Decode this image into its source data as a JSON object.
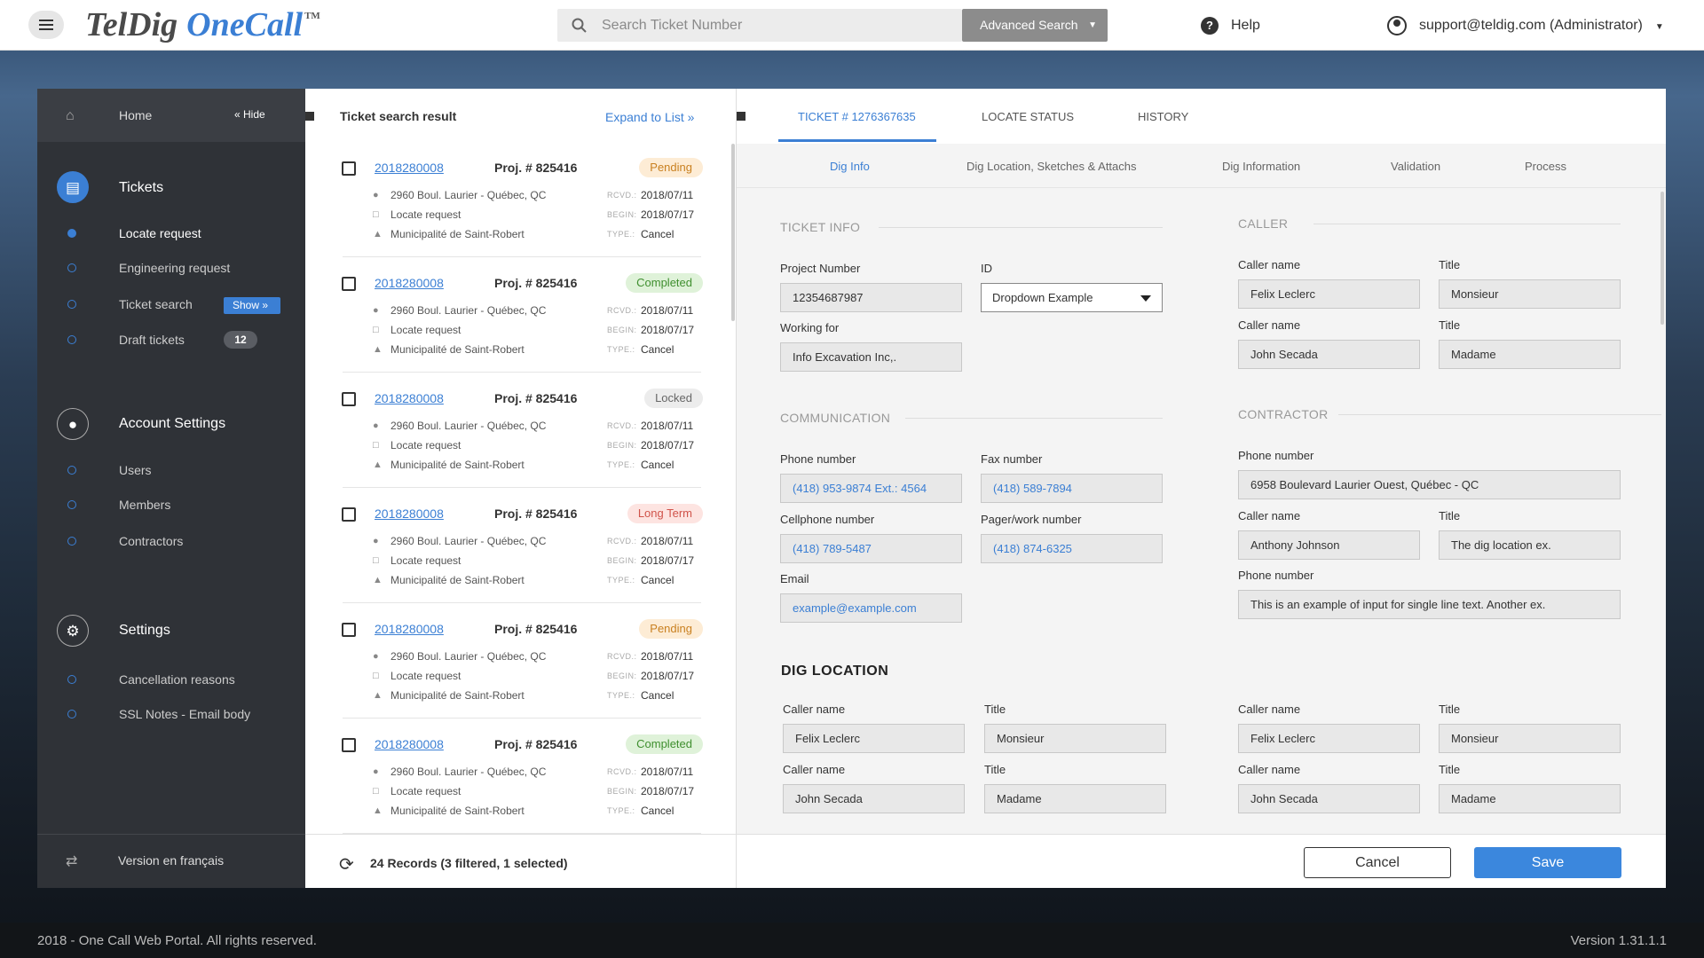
{
  "app": {
    "logo_part1": "TelDig",
    "logo_part2": "OneCall",
    "tm": "TM"
  },
  "search": {
    "placeholder": "Search Ticket Number",
    "advanced_label": "Advanced Search"
  },
  "help_label": "Help",
  "user": {
    "email": "support@teldig.com (Administrator)"
  },
  "colors": {
    "accent": "#3b7fd4",
    "sidebar_bg": "#2f3237",
    "save_button": "#3b87dd"
  },
  "sidebar": {
    "home_label": "Home",
    "hide_label": "Hide",
    "tickets_label": "Tickets",
    "tickets_items": [
      {
        "label": "Locate request",
        "active": true
      },
      {
        "label": "Engineering request",
        "active": false
      },
      {
        "label": "Ticket search",
        "active": false,
        "button": "Show"
      },
      {
        "label": "Draft tickets",
        "active": false,
        "count": "12"
      }
    ],
    "account_label": "Account Settings",
    "account_items": [
      {
        "label": "Users"
      },
      {
        "label": "Members"
      },
      {
        "label": "Contractors"
      }
    ],
    "settings_label": "Settings",
    "settings_items": [
      {
        "label": "Cancellation reasons"
      },
      {
        "label": "SSL Notes - Email body"
      }
    ],
    "language_label": "Version en français"
  },
  "list": {
    "title": "Ticket search result",
    "expand_label": "Expand to List",
    "footer": "24 Records (3 filtered, 1 selected)",
    "tickets": [
      {
        "number": "2018280008",
        "project": "Proj. # 825416",
        "status": "Pending",
        "address": "2960 Boul. Laurier - Québec, QC",
        "kind": "Locate request",
        "municipality": "Municipalité de Saint-Robert",
        "rcvd": "2018/07/11",
        "begin": "2018/07/17",
        "type": "Cancel"
      },
      {
        "number": "2018280008",
        "project": "Proj. # 825416",
        "status": "Completed",
        "address": "2960 Boul. Laurier - Québec, QC",
        "kind": "Locate request",
        "municipality": "Municipalité de Saint-Robert",
        "rcvd": "2018/07/11",
        "begin": "2018/07/17",
        "type": "Cancel"
      },
      {
        "number": "2018280008",
        "project": "Proj. # 825416",
        "status": "Locked",
        "address": "2960 Boul. Laurier - Québec, QC",
        "kind": "Locate request",
        "municipality": "Municipalité de Saint-Robert",
        "rcvd": "2018/07/11",
        "begin": "2018/07/17",
        "type": "Cancel"
      },
      {
        "number": "2018280008",
        "project": "Proj. # 825416",
        "status": "Long Term",
        "address": "2960 Boul. Laurier - Québec, QC",
        "kind": "Locate request",
        "municipality": "Municipalité de Saint-Robert",
        "rcvd": "2018/07/11",
        "begin": "2018/07/17",
        "type": "Cancel"
      },
      {
        "number": "2018280008",
        "project": "Proj. # 825416",
        "status": "Pending",
        "address": "2960 Boul. Laurier - Québec, QC",
        "kind": "Locate request",
        "municipality": "Municipalité de Saint-Robert",
        "rcvd": "2018/07/11",
        "begin": "2018/07/17",
        "type": "Cancel"
      },
      {
        "number": "2018280008",
        "project": "Proj. # 825416",
        "status": "Completed",
        "address": "2960 Boul. Laurier - Québec, QC",
        "kind": "Locate request",
        "municipality": "Municipalité de Saint-Robert",
        "rcvd": "2018/07/11",
        "begin": "2018/07/17",
        "type": "Cancel"
      }
    ],
    "keys": {
      "rcvd": "RCVD.:",
      "begin": "BEGIN:",
      "type": "TYPE.:"
    }
  },
  "detail": {
    "tabs": [
      "TICKET # 1276367635",
      "LOCATE STATUS",
      "HISTORY"
    ],
    "subtabs": [
      "Dig Info",
      "Dig Location, Sketches & Attachs",
      "Dig Information",
      "Validation",
      "Process"
    ],
    "ticket_info": {
      "title": "TICKET INFO",
      "project_number_label": "Project Number",
      "project_number": "12354687987",
      "id_label": "ID",
      "id_value": "Dropdown Example",
      "working_for_label": "Working for",
      "working_for": "Info Excavation Inc,."
    },
    "caller": {
      "title": "CALLER",
      "rows": [
        {
          "name_label": "Caller name",
          "name": "Felix Leclerc",
          "title_label": "Title",
          "title": "Monsieur"
        },
        {
          "name_label": "Caller name",
          "name": "John Secada",
          "title_label": "Title",
          "title": "Madame"
        }
      ]
    },
    "communication": {
      "title": "COMMUNICATION",
      "phone_label": "Phone number",
      "phone": "(418) 953-9874 Ext.: 4564",
      "fax_label": "Fax number",
      "fax": "(418) 589-7894",
      "cell_label": "Cellphone number",
      "cell": "(418) 789-5487",
      "pager_label": "Pager/work number",
      "pager": "(418) 874-6325",
      "email_label": "Email",
      "email": "example@example.com"
    },
    "contractor": {
      "title": "CONTRACTOR",
      "phone_label": "Phone number",
      "phone": "6958 Boulevard Laurier Ouest, Québec - QC",
      "name_label": "Caller name",
      "name": "Anthony Johnson",
      "title_label": "Title",
      "title_value": "The dig location ex.",
      "phone2_label": "Phone number",
      "phone2": "This is an example of input for single line text. Another ex."
    },
    "dig_location": {
      "title": "DIG LOCATION",
      "left": [
        {
          "name_label": "Caller name",
          "name": "Felix Leclerc",
          "title_label": "Title",
          "title": "Monsieur"
        },
        {
          "name_label": "Caller name",
          "name": "John Secada",
          "title_label": "Title",
          "title": "Madame"
        }
      ],
      "right": [
        {
          "name_label": "Caller name",
          "name": "Felix Leclerc",
          "title_label": "Title",
          "title": "Monsieur"
        },
        {
          "name_label": "Caller name",
          "name": "John Secada",
          "title_label": "Title",
          "title": "Madame"
        }
      ]
    },
    "cancel_label": "Cancel",
    "save_label": "Save"
  },
  "footer": {
    "copyright": "2018 - One Call Web Portal. All rights reserved.",
    "version": "Version 1.31.1.1"
  }
}
